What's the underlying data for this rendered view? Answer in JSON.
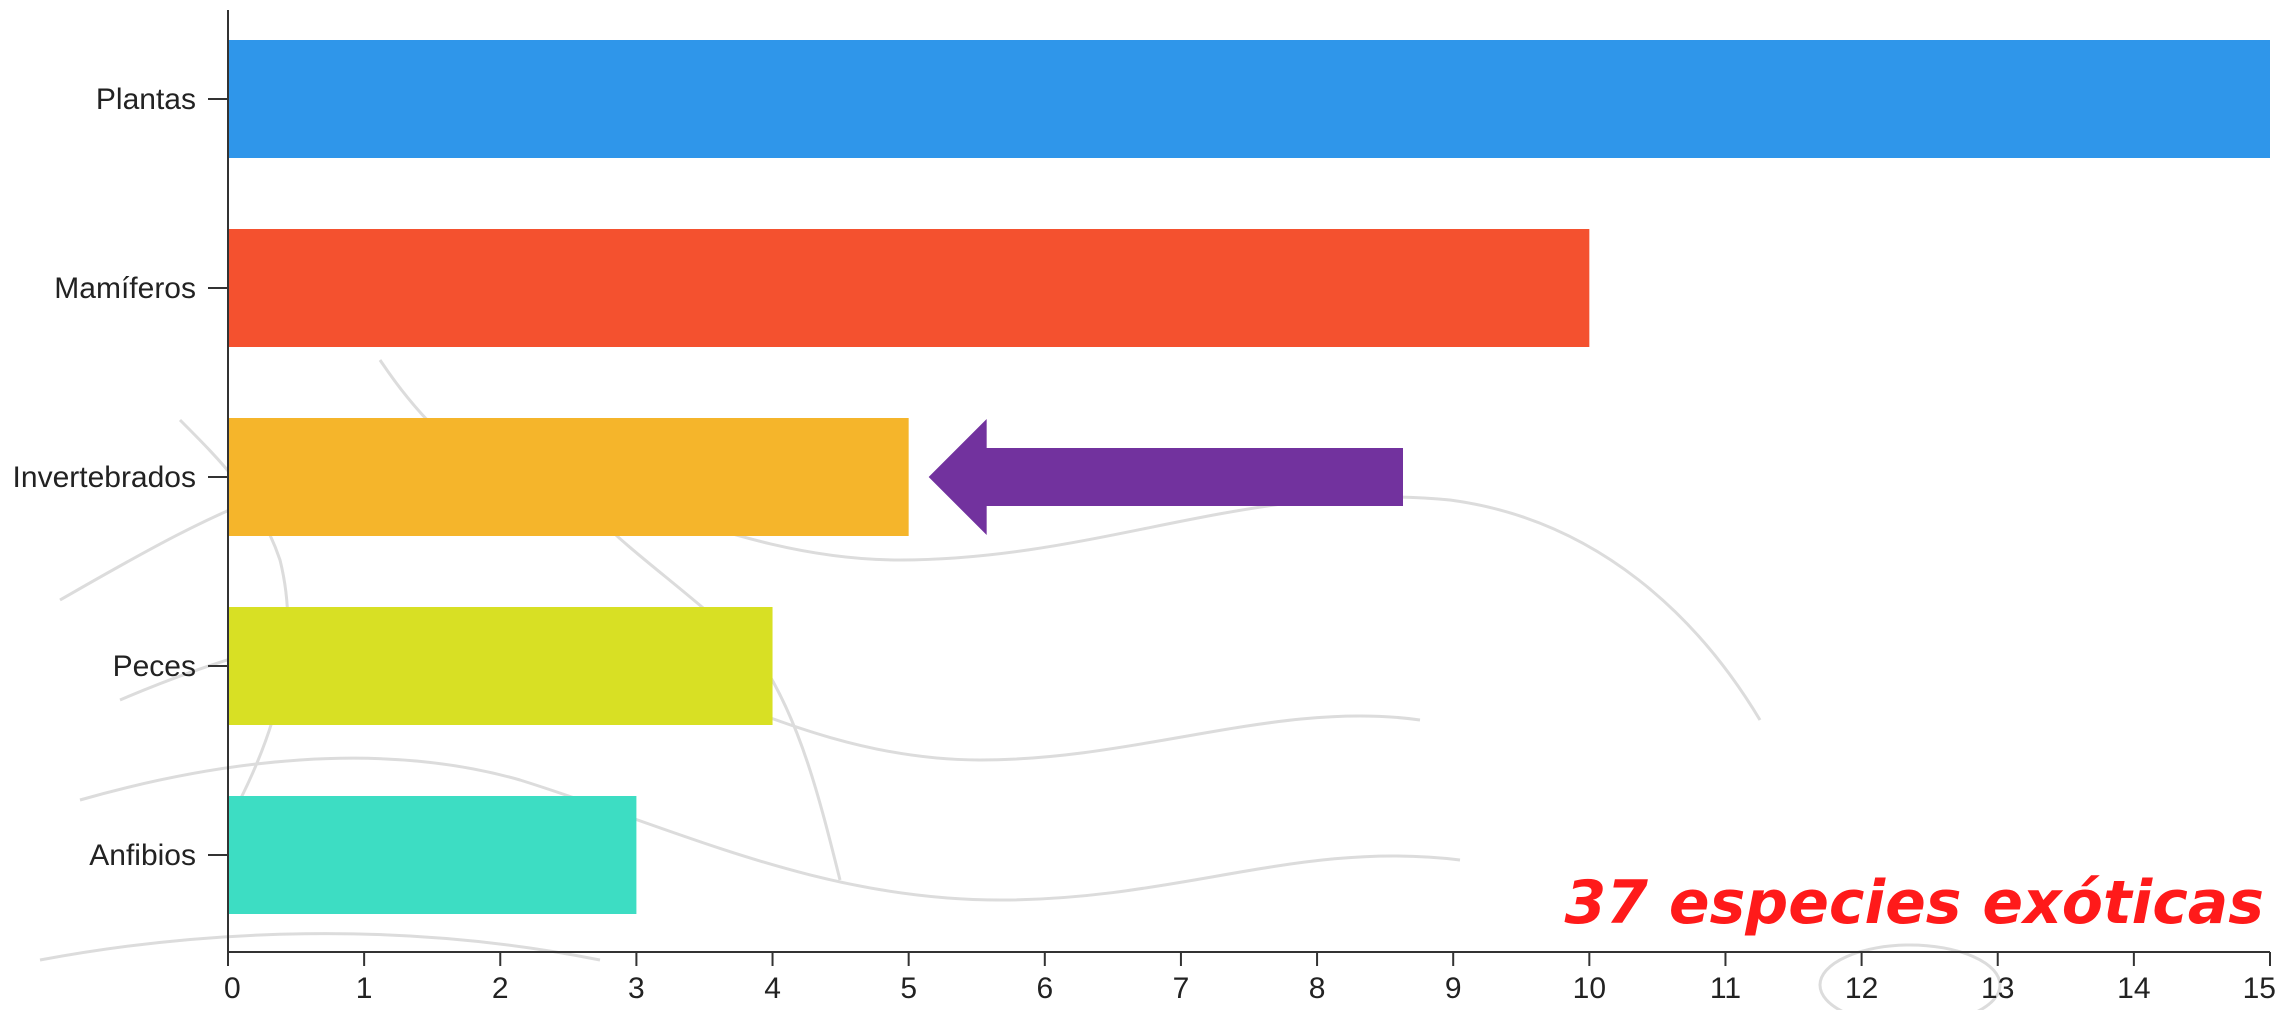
{
  "chart_data": {
    "type": "bar",
    "orientation": "horizontal",
    "categories": [
      "Plantas",
      "Mamíferos",
      "Invertebrados",
      "Peces",
      "Anfibios"
    ],
    "values": [
      15,
      10,
      5,
      4,
      3
    ],
    "colors": [
      "#2f96ea",
      "#f4512f",
      "#f5b52b",
      "#d8e024",
      "#3dddc3"
    ],
    "xlim": [
      0,
      15
    ],
    "xticks": [
      0,
      1,
      2,
      3,
      4,
      5,
      6,
      7,
      8,
      9,
      10,
      11,
      12,
      13,
      14,
      15
    ],
    "grid": false,
    "highlight": {
      "category": "Invertebrados",
      "marker": "arrow",
      "color": "#72329e"
    }
  },
  "annotation": {
    "text": "37 especies exóticas",
    "color": "#ff1a1a"
  }
}
